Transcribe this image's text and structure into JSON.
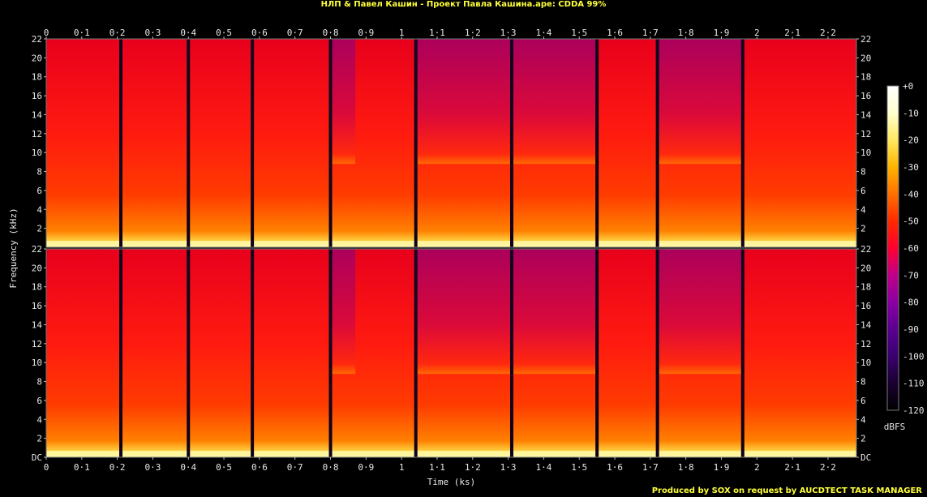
{
  "header": {
    "title": "НЛП & Павел Кашин - Проект Павла Кашина.ape: CDDA 99%"
  },
  "footer": {
    "credit": "Produced by SOX on request by AUCDTECT TASK MANAGER"
  },
  "chart_data": {
    "type": "heatmap",
    "title": "НЛП & Павел Кашин - Проект Павла Кашина.ape: CDDA 99%",
    "xlabel": "Time (ks)",
    "ylabel": "Frequency (kHz)",
    "colorbar_label": "dBFS",
    "x_tick_labels": [
      "0",
      "0·1",
      "0·2",
      "0·3",
      "0·4",
      "0·5",
      "0·6",
      "0·7",
      "0·8",
      "0·9",
      "1",
      "1·1",
      "1·2",
      "1·3",
      "1·4",
      "1·5",
      "1·6",
      "1·7",
      "1·8",
      "1·9",
      "2",
      "2·1",
      "2·2"
    ],
    "y_tick_labels": [
      "DC",
      "2",
      "4",
      "6",
      "8",
      "10",
      "12",
      "14",
      "16",
      "18",
      "20",
      "22"
    ],
    "colorbar_tick_labels": [
      "+0",
      "-10",
      "-20",
      "-30",
      "-40",
      "-50",
      "-60",
      "-70",
      "-80",
      "-90",
      "-100",
      "-110",
      "-120"
    ],
    "xlim": [
      0,
      2.28
    ],
    "ylim_khz": [
      0,
      22.05
    ],
    "zlim_dbfs": [
      -120,
      0
    ],
    "channels": 2,
    "track_boundaries_ks": [
      0.21,
      0.4,
      0.58,
      0.8,
      1.04,
      1.31,
      1.55,
      1.72,
      1.96
    ],
    "colormap": [
      "#000000",
      "#1a0030",
      "#3a0070",
      "#5a0090",
      "#8a00a0",
      "#c0008a",
      "#ff0030",
      "#ff2a00",
      "#ff7000",
      "#ffb400",
      "#ffe860",
      "#ffffd0",
      "#ffffff"
    ],
    "accent_color": "#ffff3c"
  }
}
